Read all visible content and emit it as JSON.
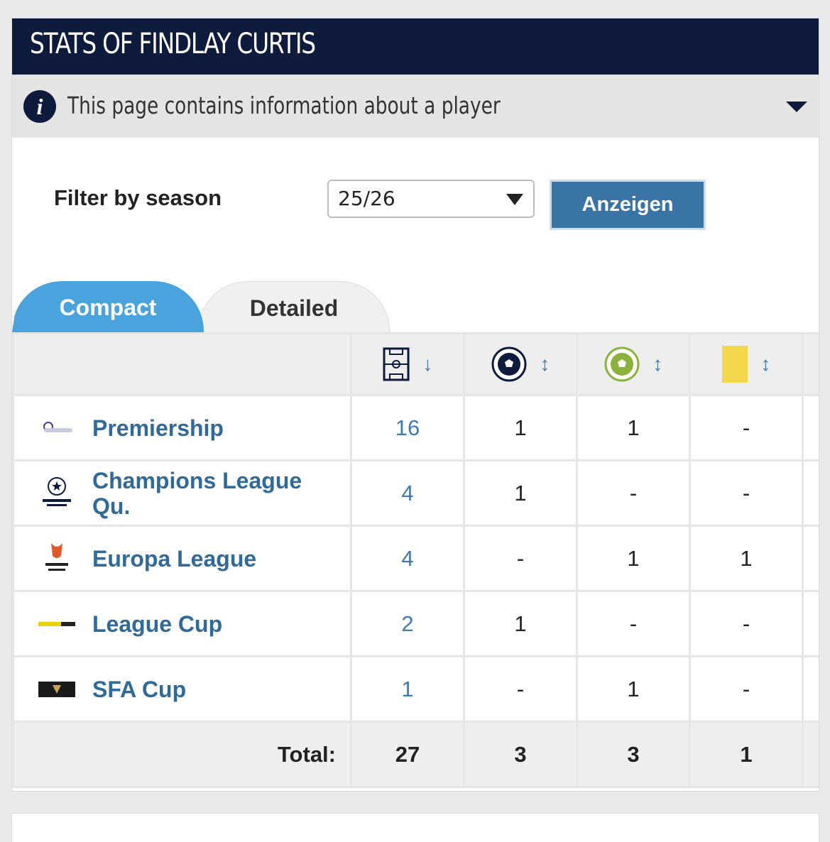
{
  "header": {
    "title": "STATS OF FINDLAY CURTIS"
  },
  "info": {
    "text": "This page contains information about a player",
    "icon": "info-icon"
  },
  "filter": {
    "label": "Filter by season",
    "selected": "25/26",
    "button": "Anzeigen"
  },
  "tabs": [
    {
      "label": "Compact",
      "active": true
    },
    {
      "label": "Detailed",
      "active": false
    }
  ],
  "columns": [
    {
      "icon": "pitch-appearances-icon",
      "sort": "↓"
    },
    {
      "icon": "goals-ball-icon",
      "sort": "↕"
    },
    {
      "icon": "assists-ball-icon",
      "sort": "↕"
    },
    {
      "icon": "yellow-card-icon",
      "sort": "↕"
    }
  ],
  "rows": [
    {
      "competition": "Premiership",
      "logo": "premiership-logo",
      "apps": "16",
      "goals": "1",
      "assists": "1",
      "yellow": "-"
    },
    {
      "competition": "Champions League Qu.",
      "logo": "champions-league-logo",
      "apps": "4",
      "goals": "1",
      "assists": "-",
      "yellow": "-"
    },
    {
      "competition": "Europa League",
      "logo": "europa-league-logo",
      "apps": "4",
      "goals": "-",
      "assists": "1",
      "yellow": "1"
    },
    {
      "competition": "League Cup",
      "logo": "league-cup-logo",
      "apps": "2",
      "goals": "1",
      "assists": "-",
      "yellow": "-"
    },
    {
      "competition": "SFA Cup",
      "logo": "sfa-cup-logo",
      "apps": "1",
      "goals": "-",
      "assists": "1",
      "yellow": "-"
    }
  ],
  "totals": {
    "label": "Total:",
    "apps": "27",
    "goals": "3",
    "assists": "3",
    "yellow": "1"
  },
  "colors": {
    "navy": "#0e1b3d",
    "tab_active": "#4aa3dd",
    "button": "#3a73a5",
    "link": "#2f6a98",
    "yellow_card": "#f2d84a",
    "assist_green": "#8bb23b"
  }
}
